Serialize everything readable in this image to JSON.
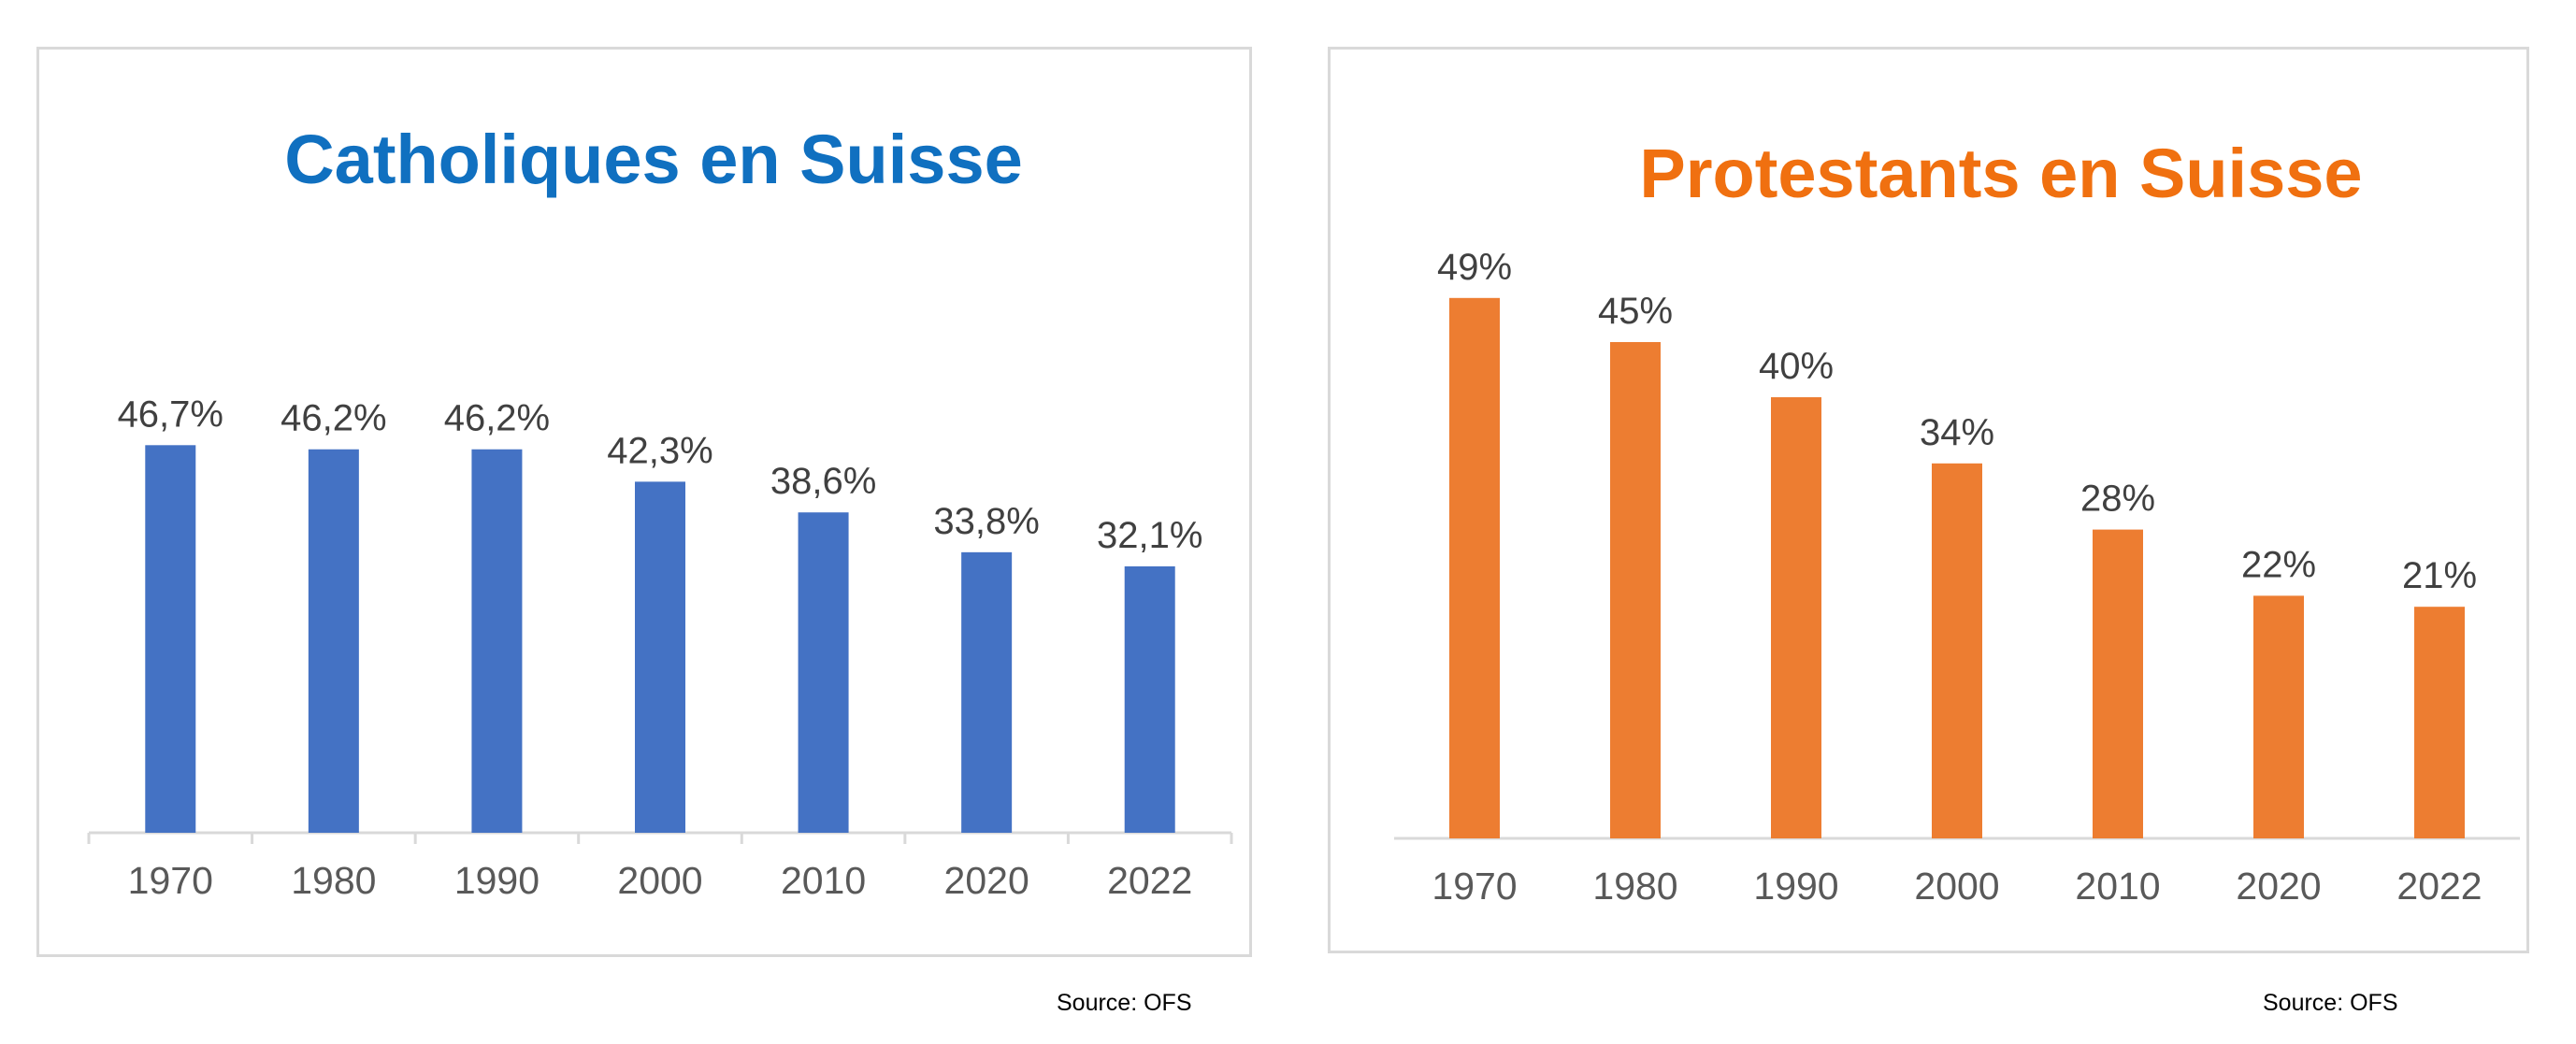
{
  "chart_data": [
    {
      "type": "bar",
      "title": "Catholiques en Suisse",
      "categories": [
        "1970",
        "1980",
        "1990",
        "2000",
        "2010",
        "2020",
        "2022"
      ],
      "values": [
        46.7,
        46.2,
        46.2,
        42.3,
        38.6,
        33.8,
        32.1
      ],
      "data_labels": [
        "46,7%",
        "46,2%",
        "46,2%",
        "42,3%",
        "38,6%",
        "33,8%",
        "32,1%"
      ],
      "ylim": [
        0,
        50
      ],
      "grid": false,
      "colors": {
        "bar": "#4472C4",
        "title": "#1070C0",
        "axis": "#d9d9d9",
        "label": "#404040"
      },
      "source": "Source: OFS"
    },
    {
      "type": "bar",
      "title": "Protestants en Suisse",
      "categories": [
        "1970",
        "1980",
        "1990",
        "2000",
        "2010",
        "2020",
        "2022"
      ],
      "values": [
        49,
        45,
        40,
        34,
        28,
        22,
        21
      ],
      "data_labels": [
        "49%",
        "45%",
        "40%",
        "34%",
        "28%",
        "22%",
        "21%"
      ],
      "ylim": [
        0,
        50
      ],
      "grid": false,
      "colors": {
        "bar": "#ED7D31",
        "title": "#F07010",
        "axis": "#d9d9d9",
        "label": "#404040"
      },
      "source": "Source: OFS"
    }
  ]
}
